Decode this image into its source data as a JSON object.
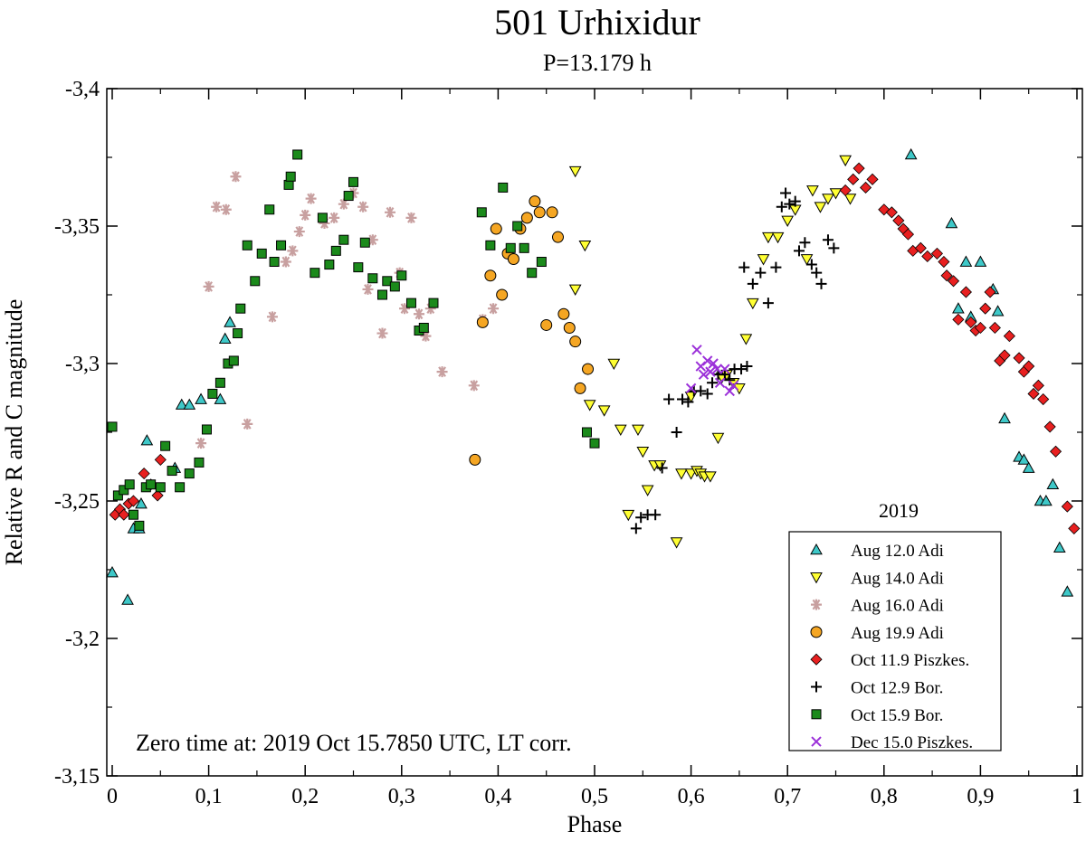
{
  "chart_data": {
    "type": "scatter",
    "title": "501 Urhixidur",
    "subtitle": "P=13.179 h",
    "xlabel": "Phase",
    "ylabel": "Relative R and C magnitude",
    "xlim": [
      0,
      1
    ],
    "ylim": [
      -3.4,
      -3.15
    ],
    "y_inverted": true,
    "xticks": [
      0,
      0.1,
      0.2,
      0.3,
      0.4,
      0.5,
      0.6,
      0.7,
      0.8,
      0.9,
      1
    ],
    "xtick_labels": [
      "0",
      "0,1",
      "0,2",
      "0,3",
      "0,4",
      "0,5",
      "0,6",
      "0,7",
      "0,8",
      "0,9",
      "1"
    ],
    "yticks": [
      -3.4,
      -3.35,
      -3.3,
      -3.25,
      -3.2,
      -3.15
    ],
    "ytick_labels": [
      "-3,4",
      "-3,35",
      "-3,3",
      "-3,25",
      "-3,2",
      "-3,15"
    ],
    "grid": false,
    "legend_title": "2019",
    "legend_position": "bottom-right",
    "annotation": "Zero time at: 2019 Oct 15.7850 UTC,  LT corr.",
    "series": [
      {
        "name": "Aug 12.0 Adi",
        "marker": "triangle-up",
        "color": "#3ec8c8",
        "points": [
          [
            0.0,
            -3.224
          ],
          [
            0.016,
            -3.214
          ],
          [
            0.022,
            -3.24
          ],
          [
            0.028,
            -3.24
          ],
          [
            0.03,
            -3.249
          ],
          [
            0.036,
            -3.272
          ],
          [
            0.065,
            -3.262
          ],
          [
            0.072,
            -3.285
          ],
          [
            0.08,
            -3.285
          ],
          [
            0.092,
            -3.287
          ],
          [
            0.112,
            -3.287
          ],
          [
            0.117,
            -3.309
          ],
          [
            0.122,
            -3.315
          ],
          [
            0.828,
            -3.376
          ],
          [
            0.87,
            -3.351
          ],
          [
            0.877,
            -3.32
          ],
          [
            0.885,
            -3.337
          ],
          [
            0.89,
            -3.317
          ],
          [
            0.9,
            -3.337
          ],
          [
            0.913,
            -3.327
          ],
          [
            0.918,
            -3.319
          ],
          [
            0.925,
            -3.28
          ],
          [
            0.94,
            -3.266
          ],
          [
            0.945,
            -3.265
          ],
          [
            0.95,
            -3.262
          ],
          [
            0.962,
            -3.25
          ],
          [
            0.968,
            -3.25
          ],
          [
            0.975,
            -3.256
          ],
          [
            0.982,
            -3.233
          ],
          [
            0.99,
            -3.217
          ]
        ]
      },
      {
        "name": "Aug 14.0 Adi",
        "marker": "triangle-down",
        "color": "#ffff33",
        "points": [
          [
            0.48,
            -3.37
          ],
          [
            0.49,
            -3.343
          ],
          [
            0.48,
            -3.327
          ],
          [
            0.495,
            -3.285
          ],
          [
            0.51,
            -3.283
          ],
          [
            0.52,
            -3.3
          ],
          [
            0.527,
            -3.276
          ],
          [
            0.535,
            -3.245
          ],
          [
            0.545,
            -3.276
          ],
          [
            0.55,
            -3.268
          ],
          [
            0.555,
            -3.254
          ],
          [
            0.562,
            -3.263
          ],
          [
            0.568,
            -3.263
          ],
          [
            0.59,
            -3.26
          ],
          [
            0.6,
            -3.26
          ],
          [
            0.606,
            -3.261
          ],
          [
            0.61,
            -3.26
          ],
          [
            0.614,
            -3.259
          ],
          [
            0.62,
            -3.259
          ],
          [
            0.628,
            -3.273
          ],
          [
            0.632,
            -3.295
          ],
          [
            0.637,
            -3.296
          ],
          [
            0.644,
            -3.293
          ],
          [
            0.65,
            -3.291
          ],
          [
            0.657,
            -3.309
          ],
          [
            0.664,
            -3.322
          ],
          [
            0.675,
            -3.338
          ],
          [
            0.68,
            -3.346
          ],
          [
            0.69,
            -3.346
          ],
          [
            0.7,
            -3.352
          ],
          [
            0.708,
            -3.356
          ],
          [
            0.72,
            -3.338
          ],
          [
            0.726,
            -3.363
          ],
          [
            0.734,
            -3.357
          ],
          [
            0.742,
            -3.36
          ],
          [
            0.75,
            -3.362
          ],
          [
            0.76,
            -3.374
          ],
          [
            0.765,
            -3.36
          ],
          [
            0.585,
            -3.235
          ],
          [
            0.6,
            -3.288
          ]
        ]
      },
      {
        "name": "Aug 16.0 Adi",
        "marker": "asterisk",
        "color": "#c8a0a0",
        "points": [
          [
            0.1,
            -3.328
          ],
          [
            0.108,
            -3.357
          ],
          [
            0.118,
            -3.356
          ],
          [
            0.128,
            -3.368
          ],
          [
            0.14,
            -3.278
          ],
          [
            0.166,
            -3.317
          ],
          [
            0.18,
            -3.337
          ],
          [
            0.187,
            -3.341
          ],
          [
            0.194,
            -3.348
          ],
          [
            0.2,
            -3.354
          ],
          [
            0.206,
            -3.36
          ],
          [
            0.22,
            -3.351
          ],
          [
            0.23,
            -3.353
          ],
          [
            0.24,
            -3.358
          ],
          [
            0.25,
            -3.362
          ],
          [
            0.26,
            -3.357
          ],
          [
            0.265,
            -3.327
          ],
          [
            0.27,
            -3.345
          ],
          [
            0.28,
            -3.311
          ],
          [
            0.288,
            -3.355
          ],
          [
            0.298,
            -3.333
          ],
          [
            0.303,
            -3.32
          ],
          [
            0.31,
            -3.353
          ],
          [
            0.318,
            -3.318
          ],
          [
            0.325,
            -3.31
          ],
          [
            0.33,
            -3.32
          ],
          [
            0.342,
            -3.297
          ],
          [
            0.375,
            -3.292
          ],
          [
            0.384,
            -3.316
          ],
          [
            0.395,
            -3.32
          ],
          [
            0.092,
            -3.271
          ]
        ]
      },
      {
        "name": "Aug 19.9 Adi",
        "marker": "circle",
        "color": "#f5a623",
        "points": [
          [
            0.376,
            -3.265
          ],
          [
            0.384,
            -3.315
          ],
          [
            0.392,
            -3.332
          ],
          [
            0.398,
            -3.349
          ],
          [
            0.404,
            -3.325
          ],
          [
            0.41,
            -3.34
          ],
          [
            0.416,
            -3.338
          ],
          [
            0.423,
            -3.349
          ],
          [
            0.43,
            -3.353
          ],
          [
            0.438,
            -3.359
          ],
          [
            0.443,
            -3.355
          ],
          [
            0.45,
            -3.314
          ],
          [
            0.456,
            -3.355
          ],
          [
            0.462,
            -3.346
          ],
          [
            0.468,
            -3.318
          ],
          [
            0.474,
            -3.313
          ],
          [
            0.48,
            -3.308
          ],
          [
            0.485,
            -3.291
          ],
          [
            0.493,
            -3.298
          ]
        ]
      },
      {
        "name": "Oct 11.9 Piszkes.",
        "marker": "diamond",
        "color": "#e82020",
        "points": [
          [
            0.003,
            -3.245
          ],
          [
            0.008,
            -3.247
          ],
          [
            0.012,
            -3.245
          ],
          [
            0.017,
            -3.249
          ],
          [
            0.022,
            -3.25
          ],
          [
            0.033,
            -3.26
          ],
          [
            0.04,
            -3.256
          ],
          [
            0.047,
            -3.252
          ],
          [
            0.05,
            -3.265
          ],
          [
            0.76,
            -3.363
          ],
          [
            0.768,
            -3.367
          ],
          [
            0.774,
            -3.371
          ],
          [
            0.781,
            -3.364
          ],
          [
            0.788,
            -3.367
          ],
          [
            0.8,
            -3.356
          ],
          [
            0.808,
            -3.355
          ],
          [
            0.815,
            -3.352
          ],
          [
            0.82,
            -3.349
          ],
          [
            0.825,
            -3.347
          ],
          [
            0.83,
            -3.341
          ],
          [
            0.838,
            -3.342
          ],
          [
            0.845,
            -3.339
          ],
          [
            0.855,
            -3.34
          ],
          [
            0.862,
            -3.337
          ],
          [
            0.865,
            -3.332
          ],
          [
            0.872,
            -3.33
          ],
          [
            0.877,
            -3.316
          ],
          [
            0.885,
            -3.326
          ],
          [
            0.89,
            -3.315
          ],
          [
            0.895,
            -3.312
          ],
          [
            0.9,
            -3.313
          ],
          [
            0.905,
            -3.32
          ],
          [
            0.91,
            -3.326
          ],
          [
            0.915,
            -3.313
          ],
          [
            0.92,
            -3.301
          ],
          [
            0.925,
            -3.303
          ],
          [
            0.93,
            -3.31
          ],
          [
            0.94,
            -3.302
          ],
          [
            0.945,
            -3.297
          ],
          [
            0.95,
            -3.299
          ],
          [
            0.955,
            -3.289
          ],
          [
            0.96,
            -3.292
          ],
          [
            0.965,
            -3.287
          ],
          [
            0.972,
            -3.277
          ],
          [
            0.978,
            -3.268
          ],
          [
            0.99,
            -3.248
          ],
          [
            0.997,
            -3.24
          ]
        ]
      },
      {
        "name": "Oct 12.9 Bor.",
        "marker": "plus",
        "color": "#000000",
        "points": [
          [
            0.543,
            -3.24
          ],
          [
            0.548,
            -3.244
          ],
          [
            0.555,
            -3.245
          ],
          [
            0.563,
            -3.245
          ],
          [
            0.57,
            -3.262
          ],
          [
            0.577,
            -3.287
          ],
          [
            0.585,
            -3.275
          ],
          [
            0.591,
            -3.287
          ],
          [
            0.597,
            -3.286
          ],
          [
            0.603,
            -3.29
          ],
          [
            0.61,
            -3.29
          ],
          [
            0.617,
            -3.289
          ],
          [
            0.622,
            -3.293
          ],
          [
            0.628,
            -3.296
          ],
          [
            0.635,
            -3.296
          ],
          [
            0.64,
            -3.294
          ],
          [
            0.645,
            -3.298
          ],
          [
            0.652,
            -3.298
          ],
          [
            0.658,
            -3.299
          ],
          [
            0.664,
            -3.329
          ],
          [
            0.672,
            -3.333
          ],
          [
            0.68,
            -3.322
          ],
          [
            0.688,
            -3.335
          ],
          [
            0.694,
            -3.357
          ],
          [
            0.698,
            -3.362
          ],
          [
            0.702,
            -3.358
          ],
          [
            0.708,
            -3.359
          ],
          [
            0.712,
            -3.341
          ],
          [
            0.718,
            -3.344
          ],
          [
            0.725,
            -3.336
          ],
          [
            0.73,
            -3.333
          ],
          [
            0.735,
            -3.329
          ],
          [
            0.742,
            -3.345
          ],
          [
            0.748,
            -3.342
          ],
          [
            0.655,
            -3.335
          ]
        ]
      },
      {
        "name": "Oct 15.9 Bor.",
        "marker": "square",
        "color": "#1b8a1b",
        "points": [
          [
            0.0,
            -3.277
          ],
          [
            0.006,
            -3.252
          ],
          [
            0.012,
            -3.254
          ],
          [
            0.018,
            -3.256
          ],
          [
            0.022,
            -3.245
          ],
          [
            0.028,
            -3.241
          ],
          [
            0.035,
            -3.255
          ],
          [
            0.04,
            -3.256
          ],
          [
            0.05,
            -3.255
          ],
          [
            0.055,
            -3.27
          ],
          [
            0.062,
            -3.261
          ],
          [
            0.07,
            -3.255
          ],
          [
            0.08,
            -3.26
          ],
          [
            0.09,
            -3.264
          ],
          [
            0.098,
            -3.276
          ],
          [
            0.104,
            -3.289
          ],
          [
            0.112,
            -3.293
          ],
          [
            0.12,
            -3.3
          ],
          [
            0.126,
            -3.301
          ],
          [
            0.13,
            -3.311
          ],
          [
            0.133,
            -3.32
          ],
          [
            0.14,
            -3.343
          ],
          [
            0.148,
            -3.33
          ],
          [
            0.155,
            -3.34
          ],
          [
            0.163,
            -3.356
          ],
          [
            0.168,
            -3.337
          ],
          [
            0.175,
            -3.343
          ],
          [
            0.183,
            -3.365
          ],
          [
            0.185,
            -3.368
          ],
          [
            0.192,
            -3.376
          ],
          [
            0.21,
            -3.333
          ],
          [
            0.218,
            -3.353
          ],
          [
            0.225,
            -3.336
          ],
          [
            0.232,
            -3.341
          ],
          [
            0.24,
            -3.345
          ],
          [
            0.245,
            -3.361
          ],
          [
            0.25,
            -3.366
          ],
          [
            0.255,
            -3.335
          ],
          [
            0.262,
            -3.344
          ],
          [
            0.27,
            -3.331
          ],
          [
            0.28,
            -3.325
          ],
          [
            0.285,
            -3.33
          ],
          [
            0.293,
            -3.328
          ],
          [
            0.3,
            -3.332
          ],
          [
            0.31,
            -3.322
          ],
          [
            0.318,
            -3.312
          ],
          [
            0.323,
            -3.313
          ],
          [
            0.333,
            -3.322
          ],
          [
            0.383,
            -3.355
          ],
          [
            0.392,
            -3.343
          ],
          [
            0.405,
            -3.364
          ],
          [
            0.413,
            -3.342
          ],
          [
            0.42,
            -3.35
          ],
          [
            0.427,
            -3.342
          ],
          [
            0.435,
            -3.333
          ],
          [
            0.445,
            -3.337
          ],
          [
            0.492,
            -3.275
          ],
          [
            0.5,
            -3.271
          ]
        ]
      },
      {
        "name": "Dec 15.0 Piszkes.",
        "marker": "x",
        "color": "#9b30d9",
        "points": [
          [
            0.6,
            -3.291
          ],
          [
            0.606,
            -3.305
          ],
          [
            0.61,
            -3.299
          ],
          [
            0.613,
            -3.296
          ],
          [
            0.617,
            -3.301
          ],
          [
            0.62,
            -3.297
          ],
          [
            0.623,
            -3.3
          ],
          [
            0.627,
            -3.298
          ],
          [
            0.63,
            -3.293
          ],
          [
            0.635,
            -3.298
          ],
          [
            0.64,
            -3.29
          ],
          [
            0.644,
            -3.292
          ]
        ]
      }
    ]
  }
}
